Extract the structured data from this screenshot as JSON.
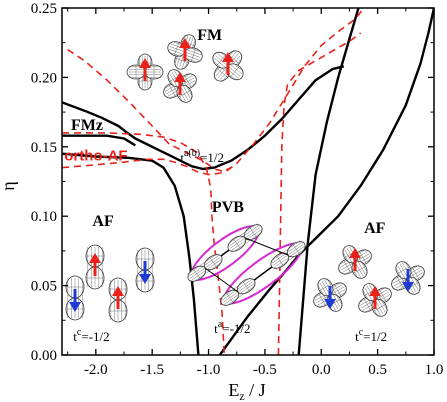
{
  "chart_data": {
    "type": "line",
    "xlabel": "E",
    "xlabel_sub": "z",
    "xlabel_tail": " / J",
    "ylabel": "η",
    "xlim": [
      -2.3,
      1.0
    ],
    "ylim": [
      0.0,
      0.25
    ],
    "xticks": [
      -2.0,
      -1.5,
      -1.0,
      -0.5,
      0.0,
      0.5,
      1.0
    ],
    "yticks": [
      0.0,
      0.05,
      0.1,
      0.15,
      0.2,
      0.25
    ],
    "xtick_labels": [
      "-2.0",
      "-1.5",
      "-1.0",
      "-0.5",
      "0.0",
      "0.5",
      "1.0"
    ],
    "ytick_labels": [
      "0.00",
      "0.05",
      "0.10",
      "0.15",
      "0.20",
      "0.25"
    ],
    "series": [
      {
        "style": "solid",
        "color": "#000000",
        "points": [
          [
            -2.3,
            0.182
          ],
          [
            -2.1,
            0.176
          ],
          [
            -1.95,
            0.171
          ],
          [
            -1.8,
            0.165
          ],
          [
            -1.72,
            0.16
          ],
          [
            -1.65,
            0.156
          ],
          [
            -1.55,
            0.152
          ],
          [
            -1.45,
            0.148
          ],
          [
            -1.35,
            0.144
          ],
          [
            -1.25,
            0.14
          ],
          [
            -1.15,
            0.136
          ],
          [
            -1.05,
            0.134
          ],
          [
            -0.95,
            0.135
          ],
          [
            -0.8,
            0.14
          ],
          [
            -0.65,
            0.148
          ],
          [
            -0.5,
            0.158
          ],
          [
            -0.35,
            0.17
          ],
          [
            -0.2,
            0.184
          ],
          [
            -0.05,
            0.198
          ],
          [
            0.1,
            0.206
          ],
          [
            0.2,
            0.208
          ]
        ]
      },
      {
        "style": "solid",
        "color": "#000000",
        "points": [
          [
            -2.3,
            0.145
          ],
          [
            -2.0,
            0.143
          ],
          [
            -1.7,
            0.142
          ],
          [
            -1.5,
            0.14
          ],
          [
            -1.4,
            0.135
          ],
          [
            -1.3,
            0.122
          ],
          [
            -1.22,
            0.1
          ],
          [
            -1.17,
            0.07
          ],
          [
            -1.13,
            0.04
          ],
          [
            -1.1,
            0.01
          ],
          [
            -1.09,
            0.0
          ]
        ]
      },
      {
        "style": "solid",
        "color": "#000000",
        "points": [
          [
            -0.9,
            0.0
          ],
          [
            -0.65,
            0.028
          ],
          [
            -0.45,
            0.048
          ],
          [
            -0.3,
            0.062
          ],
          [
            -0.2,
            0.072
          ],
          [
            0.0,
            0.088
          ],
          [
            0.15,
            0.1
          ],
          [
            0.35,
            0.122
          ],
          [
            0.55,
            0.148
          ],
          [
            0.75,
            0.18
          ],
          [
            0.88,
            0.21
          ],
          [
            0.95,
            0.232
          ],
          [
            1.0,
            0.25
          ]
        ]
      },
      {
        "style": "solid",
        "color": "#000000",
        "points": [
          [
            -0.2,
            0.0
          ],
          [
            -0.12,
            0.08
          ],
          [
            -0.05,
            0.13
          ],
          [
            0.05,
            0.168
          ],
          [
            0.15,
            0.2
          ],
          [
            0.25,
            0.228
          ],
          [
            0.33,
            0.25
          ]
        ]
      },
      {
        "style": "solid",
        "color": "#000000",
        "points": [
          [
            -2.3,
            0.158
          ],
          [
            -1.9,
            0.158
          ],
          [
            -1.75,
            0.156
          ],
          [
            -1.65,
            0.151
          ]
        ]
      },
      {
        "style": "dashed",
        "color": "#e8221b",
        "points": [
          [
            -2.25,
            0.22
          ],
          [
            -2.1,
            0.212
          ],
          [
            -1.9,
            0.198
          ],
          [
            -1.7,
            0.182
          ],
          [
            -1.5,
            0.165
          ],
          [
            -1.35,
            0.152
          ],
          [
            -1.2,
            0.146
          ],
          [
            -1.05,
            0.14
          ],
          [
            -0.95,
            0.134
          ],
          [
            -0.85,
            0.132
          ],
          [
            -0.75,
            0.138
          ],
          [
            -0.6,
            0.152
          ],
          [
            -0.45,
            0.168
          ],
          [
            -0.3,
            0.188
          ],
          [
            -0.15,
            0.208
          ],
          [
            0.0,
            0.223
          ],
          [
            0.15,
            0.233
          ],
          [
            0.3,
            0.242
          ],
          [
            0.38,
            0.25
          ]
        ]
      },
      {
        "style": "dashed",
        "color": "#e8221b",
        "points": [
          [
            -2.3,
            0.16
          ],
          [
            -1.9,
            0.16
          ],
          [
            -1.6,
            0.159
          ],
          [
            -1.4,
            0.157
          ],
          [
            -1.25,
            0.153
          ],
          [
            -1.1,
            0.146
          ],
          [
            -1.02,
            0.135
          ],
          [
            -0.98,
            0.12
          ],
          [
            -0.97,
            0.1
          ],
          [
            -0.95,
            0.08
          ],
          [
            -0.92,
            0.06
          ],
          [
            -0.88,
            0.03
          ],
          [
            -0.86,
            0.0
          ]
        ]
      },
      {
        "style": "dashed",
        "color": "#e8221b",
        "points": [
          [
            -2.3,
            0.135
          ],
          [
            -2.0,
            0.137
          ],
          [
            -1.75,
            0.139
          ],
          [
            -1.55,
            0.141
          ],
          [
            -1.4,
            0.141
          ],
          [
            -1.3,
            0.139
          ],
          [
            -1.2,
            0.136
          ],
          [
            -1.1,
            0.132
          ],
          [
            -1.0,
            0.13
          ],
          [
            -0.9,
            0.131
          ],
          [
            -0.8,
            0.135
          ]
        ]
      },
      {
        "style": "dashed",
        "color": "#e8221b",
        "points": [
          [
            -0.38,
            0.0
          ],
          [
            -0.37,
            0.05
          ],
          [
            -0.36,
            0.1
          ],
          [
            -0.35,
            0.15
          ],
          [
            -0.33,
            0.18
          ],
          [
            -0.3,
            0.195
          ],
          [
            -0.2,
            0.205
          ],
          [
            -0.05,
            0.212
          ],
          [
            0.1,
            0.219
          ],
          [
            0.25,
            0.226
          ],
          [
            0.35,
            0.232
          ]
        ]
      }
    ],
    "annotations": [
      {
        "text": "FM",
        "type": "region",
        "x": -1.1,
        "y": 0.227
      },
      {
        "text": "FMz",
        "type": "region",
        "x": -2.22,
        "y": 0.162
      },
      {
        "text": "ortho-AF",
        "type": "red",
        "x": -2.28,
        "y": 0.14
      },
      {
        "text": "AF",
        "type": "region",
        "x": -2.03,
        "y": 0.093
      },
      {
        "text": "PVB",
        "type": "region",
        "x": -0.97,
        "y": 0.103
      },
      {
        "text": "AF",
        "type": "region",
        "x": 0.38,
        "y": 0.088
      },
      {
        "text": "t",
        "sup": "a(b)",
        "tail": "=1/2",
        "type": "small",
        "x": -1.25,
        "y": 0.139
      },
      {
        "text": "t",
        "sup": "c",
        "tail": "=-1/2",
        "type": "small",
        "x": -2.2,
        "y": 0.01
      },
      {
        "text": "t",
        "sup": "a",
        "tail": "=-1/2",
        "type": "small",
        "x": -0.95,
        "y": 0.016
      },
      {
        "text": "t",
        "sup": "c",
        "tail": "=1/2",
        "type": "small",
        "x": 0.3,
        "y": 0.01
      }
    ]
  }
}
